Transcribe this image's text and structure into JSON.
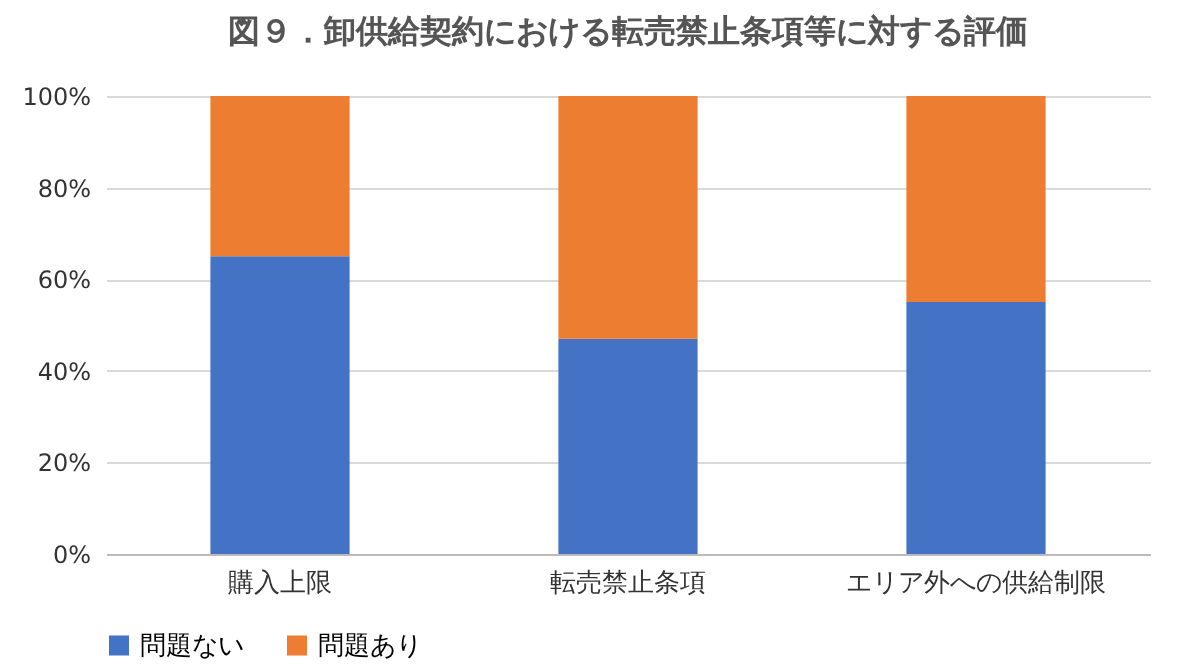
{
  "chart_data": {
    "type": "bar",
    "title": "図９．卸供給契約における転売禁止条項等に対する評価",
    "categories": [
      "購入上限",
      "転売禁止条項",
      "エリア外への供給制限"
    ],
    "stacked": true,
    "series": [
      {
        "name": "問題ない",
        "color": "#4472c4",
        "values": [
          65,
          47,
          55
        ]
      },
      {
        "name": "問題あり",
        "color": "#ed7d31",
        "values": [
          35,
          53,
          45
        ]
      }
    ],
    "ylim": [
      0,
      100
    ],
    "yticks": [
      {
        "value": 0,
        "label": "0%"
      },
      {
        "value": 20,
        "label": "20%"
      },
      {
        "value": 40,
        "label": "40%"
      },
      {
        "value": 60,
        "label": "60%"
      },
      {
        "value": 80,
        "label": "80%"
      },
      {
        "value": 100,
        "label": "100%"
      }
    ],
    "grid": "y",
    "legend": "bottom"
  }
}
